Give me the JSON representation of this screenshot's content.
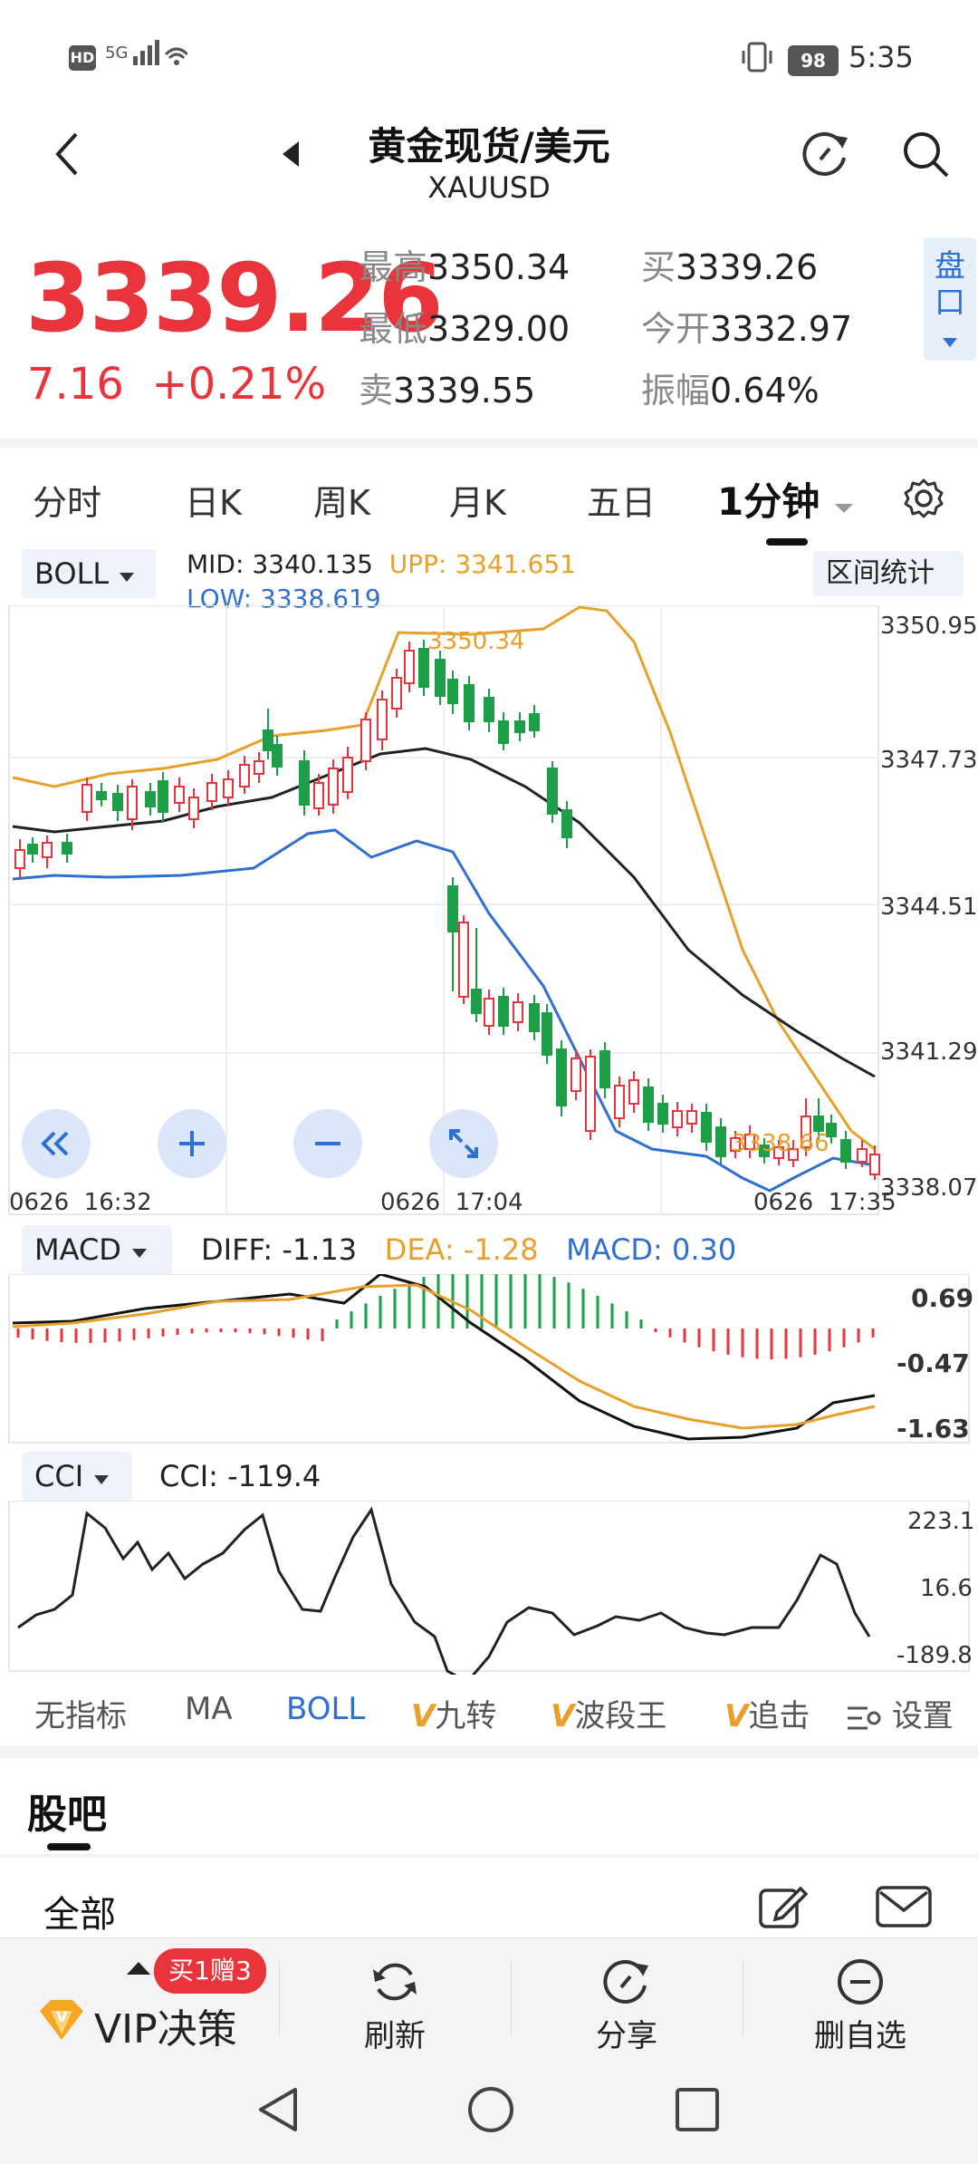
{
  "status_bar": {
    "hd": "HD",
    "signal": "5G",
    "battery": "98",
    "time": "5:35"
  },
  "header": {
    "title": "黄金现货/美元",
    "subtitle": "XAUUSD"
  },
  "quote": {
    "price": "3339.26",
    "change": "7.16",
    "change_pct": "+0.21%",
    "high_label": "最高",
    "high": "3350.34",
    "low_label": "最低",
    "low": "3329.00",
    "sell_label": "卖",
    "sell": "3339.55",
    "buy_label": "买",
    "buy": "3339.26",
    "open_label": "今开",
    "open": "3332.97",
    "amp_label": "振幅",
    "amp": "0.64%",
    "pankou": "盘口"
  },
  "tabs": [
    "分时",
    "日K",
    "周K",
    "月K",
    "五日",
    "1分钟"
  ],
  "main_chart": {
    "indicator": "BOLL",
    "mid_label": "MID:",
    "mid": "3340.135",
    "upp_label": "UPP:",
    "upp": "3341.651",
    "low_label": "LOW:",
    "low": "3338.619",
    "interval_btn": "区间统计",
    "max_label": "3350.34",
    "min_label": "3338.66",
    "yticks": [
      "3350.95",
      "3347.73",
      "3344.51",
      "3341.29",
      "3338.07"
    ],
    "xticks": [
      "0626  16:32",
      "0626  17:04",
      "0626  17:35"
    ]
  },
  "macd": {
    "indicator": "MACD",
    "diff": "DIFF: -1.13",
    "dea": "DEA: -1.28",
    "macd": "MACD: 0.30",
    "yticks": [
      "0.69",
      "-0.47",
      "-1.63"
    ]
  },
  "cci": {
    "indicator": "CCI",
    "value": "CCI: -119.4",
    "yticks": [
      "223.1",
      "16.6",
      "-189.8"
    ]
  },
  "indicator_tabs": {
    "none": "无指标",
    "ma": "MA",
    "boll": "BOLL",
    "v": "V",
    "jiuzhuan": "九转",
    "boduanwang": "波段王",
    "zhuiji": "追击",
    "settings": "设置"
  },
  "guba": {
    "title": "股吧",
    "all": "全部"
  },
  "bottom_bar": {
    "vip": "VIP决策",
    "badge": "买1赠3",
    "refresh": "刷新",
    "share": "分享",
    "remove": "删自选"
  },
  "colors": {
    "up": "#e8343a",
    "down": "#1e9e48",
    "upp": "#e8a02a",
    "low": "#2e6fd0",
    "accent": "#2e6fd0"
  },
  "chart_data": {
    "type": "candlestick",
    "interval": "1分钟",
    "x_range": [
      "0626 16:32",
      "0626 17:35"
    ],
    "ylim": [
      3338.07,
      3350.95
    ],
    "high": 3350.34,
    "low": 3338.66,
    "boll": {
      "mid": 3340.135,
      "upp": 3341.651,
      "low": 3338.619
    },
    "macd": {
      "diff": -1.13,
      "dea": -1.28,
      "macd": 0.3,
      "ylim": [
        -1.63,
        0.69
      ]
    },
    "cci": {
      "value": -119.4,
      "ylim": [
        -189.8,
        223.1
      ]
    }
  }
}
